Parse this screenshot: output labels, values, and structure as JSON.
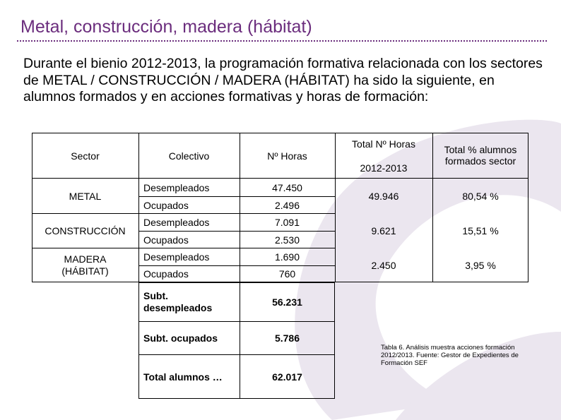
{
  "title": "Metal, construcción, madera (hábitat)",
  "intro": "Durante el bienio 2012-2013, la programación formativa relacionada con los sectores de METAL / CONSTRUCCIÓN / MADERA (HÁBITAT) ha sido la siguiente, en alumnos formados y en acciones formativas y horas de formación:",
  "table": {
    "headers": {
      "sector": "Sector",
      "colectivo": "Colectivo",
      "horas": "Nº Horas",
      "total_horas_line1": "Total Nº Horas",
      "total_horas_line2": "2012-2013",
      "total_pct": "Total % alumnos formados sector"
    },
    "sectors": [
      {
        "name": "METAL",
        "rows": [
          {
            "colectivo": "Desempleados",
            "horas": "47.450"
          },
          {
            "colectivo": "Ocupados",
            "horas": "2.496"
          }
        ],
        "total_horas": "49.946",
        "total_pct": "80,54 %"
      },
      {
        "name": "CONSTRUCCIÓN",
        "rows": [
          {
            "colectivo": "Desempleados",
            "horas": "7.091"
          },
          {
            "colectivo": "Ocupados",
            "horas": "2.530"
          }
        ],
        "total_horas": "9.621",
        "total_pct": "15,51 %"
      },
      {
        "name": "MADERA (HÁBITAT)",
        "rows": [
          {
            "colectivo": "Desempleados",
            "horas": "1.690"
          },
          {
            "colectivo": "Ocupados",
            "horas": "760"
          }
        ],
        "total_horas": "2.450",
        "total_pct": "3,95 %"
      }
    ],
    "subtotals": [
      {
        "label": "Subt. desempleados",
        "value": "56.231"
      },
      {
        "label": "Subt. ocupados",
        "value": "5.786"
      },
      {
        "label": "Total alumnos …",
        "value": "62.017"
      }
    ]
  },
  "caption": "Tabla 6. Análisis muestra acciones formación 2012/2013. Fuente: Gestor de Expedientes de Formación SEF",
  "colors": {
    "title": "#6b2d7d",
    "watermark": "#e9e3ee"
  }
}
